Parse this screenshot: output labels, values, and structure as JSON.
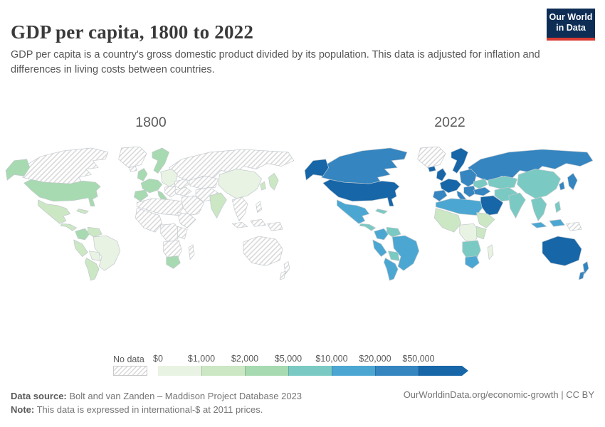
{
  "header": {
    "title": "GDP per capita, 1800 to 2022",
    "subtitle": "GDP per capita is a country's gross domestic product divided by its population. This data is adjusted for inflation and differences in living costs between countries.",
    "logo": {
      "line1": "Our World",
      "line2": "in Data",
      "bg_color": "#0d2d55",
      "accent_color": "#d93a32"
    }
  },
  "legend": {
    "no_data_label": "No data",
    "ticks": [
      "$0",
      "$1,000",
      "$2,000",
      "$5,000",
      "$10,000",
      "$20,000",
      "$50,000"
    ],
    "colors": [
      "#e8f3e3",
      "#cbe7c3",
      "#a7dab0",
      "#7acac3",
      "#4ba7d2",
      "#3485c0",
      "#1666a8"
    ],
    "hatch_line_color": "#d6d6d6",
    "border_color": "#c2c8cd"
  },
  "maps": [
    {
      "year": "1800",
      "regions": {
        "greenland": "nodata",
        "iceland": "nodata",
        "canada": "nodata",
        "alaska": "b3",
        "usa": "b3",
        "mexico": "b2",
        "cuba": "b2",
        "central-america": "b2",
        "colombia": "b3",
        "venezuela": "b2",
        "brazil": "b1",
        "peru": "b2",
        "bolivia": "b1",
        "argentina": "b2",
        "russia": "nodata",
        "scandinavia": "b3",
        "uk": "b3",
        "west-europe": "b3",
        "iberia": "b3",
        "italy": "b3",
        "east-europe": "b1",
        "balkans": "nodata",
        "ukraine": "nodata",
        "turkey": "nodata",
        "central-asia": "nodata",
        "iran": "nodata",
        "middle-east": "nodata",
        "north-africa": "nodata",
        "west-africa": "nodata",
        "central-africa": "nodata",
        "east-africa": "nodata",
        "southern-africa": "nodata",
        "south-africa": "b3",
        "madagascar": "nodata",
        "india": "b2",
        "china": "b1",
        "korea": "b2",
        "japan": "b2",
        "se-asia": "nodata",
        "philippines": "nodata",
        "indonesia": "nodata",
        "papua": "nodata",
        "australia": "nodata",
        "new-zealand": "nodata"
      }
    },
    {
      "year": "2022",
      "regions": {
        "greenland": "nodata",
        "iceland": "b7",
        "canada": "b6",
        "alaska": "b7",
        "usa": "b7",
        "mexico": "b5",
        "cuba": "b4",
        "central-america": "b4",
        "colombia": "b5",
        "venezuela": "b4",
        "brazil": "b5",
        "peru": "b5",
        "bolivia": "b4",
        "argentina": "b5",
        "russia": "b6",
        "scandinavia": "b7",
        "uk": "b7",
        "west-europe": "b7",
        "iberia": "b6",
        "italy": "b6",
        "east-europe": "b6",
        "balkans": "b6",
        "ukraine": "b4",
        "turkey": "b6",
        "central-asia": "b4",
        "iran": "b4",
        "middle-east": "b7",
        "north-africa": "b5",
        "west-africa": "b2",
        "central-africa": "b1",
        "east-africa": "b2",
        "southern-africa": "b4",
        "south-africa": "b5",
        "madagascar": "b1",
        "india": "b4",
        "china": "b4",
        "korea": "b6",
        "japan": "b6",
        "se-asia": "b4",
        "philippines": "b4",
        "indonesia": "b5",
        "papua": "nodata",
        "australia": "b7",
        "new-zealand": "b6"
      }
    }
  ],
  "chart_data": {
    "type": "choropleth-map",
    "title": "GDP per capita, 1800 to 2022",
    "unit": "international-$ at 2011 prices",
    "years": [
      "1800",
      "2022"
    ],
    "legend_bins": [
      {
        "label": "No data",
        "style": "hatched"
      },
      {
        "label": "$0–$1,000",
        "color": "#e8f3e3"
      },
      {
        "label": "$1,000–$2,000",
        "color": "#cbe7c3"
      },
      {
        "label": "$2,000–$5,000",
        "color": "#a7dab0"
      },
      {
        "label": "$5,000–$10,000",
        "color": "#7acac3"
      },
      {
        "label": "$10,000–$20,000",
        "color": "#4ba7d2"
      },
      {
        "label": "$20,000–$50,000",
        "color": "#3485c0"
      },
      {
        "label": "$50,000+",
        "color": "#1666a8"
      }
    ],
    "regions": [
      {
        "name": "United States",
        "1800": "$2,000–$5,000",
        "2022": "$50,000+"
      },
      {
        "name": "Alaska",
        "1800": "$2,000–$5,000",
        "2022": "$50,000+"
      },
      {
        "name": "Canada",
        "1800": "No data",
        "2022": "$20,000–$50,000"
      },
      {
        "name": "Greenland",
        "1800": "No data",
        "2022": "No data"
      },
      {
        "name": "Mexico",
        "1800": "$1,000–$2,000",
        "2022": "$10,000–$20,000"
      },
      {
        "name": "Cuba",
        "1800": "$1,000–$2,000",
        "2022": "$5,000–$10,000"
      },
      {
        "name": "Central America",
        "1800": "$1,000–$2,000",
        "2022": "$5,000–$10,000"
      },
      {
        "name": "Colombia",
        "1800": "$2,000–$5,000",
        "2022": "$10,000–$20,000"
      },
      {
        "name": "Venezuela",
        "1800": "$1,000–$2,000",
        "2022": "$5,000–$10,000"
      },
      {
        "name": "Brazil",
        "1800": "$0–$1,000",
        "2022": "$10,000–$20,000"
      },
      {
        "name": "Peru",
        "1800": "$1,000–$2,000",
        "2022": "$10,000–$20,000"
      },
      {
        "name": "Bolivia & Paraguay",
        "1800": "$0–$1,000",
        "2022": "$5,000–$10,000"
      },
      {
        "name": "Argentina & Chile",
        "1800": "$1,000–$2,000",
        "2022": "$10,000–$20,000"
      },
      {
        "name": "United Kingdom",
        "1800": "$2,000–$5,000",
        "2022": "$50,000+"
      },
      {
        "name": "Scandinavia",
        "1800": "$2,000–$5,000",
        "2022": "$50,000+"
      },
      {
        "name": "Western Europe",
        "1800": "$2,000–$5,000",
        "2022": "$50,000+"
      },
      {
        "name": "Spain & Portugal",
        "1800": "$2,000–$5,000",
        "2022": "$20,000–$50,000"
      },
      {
        "name": "Italy",
        "1800": "$2,000–$5,000",
        "2022": "$20,000–$50,000"
      },
      {
        "name": "Eastern Europe",
        "1800": "$0–$1,000",
        "2022": "$20,000–$50,000"
      },
      {
        "name": "Balkans",
        "1800": "No data",
        "2022": "$20,000–$50,000"
      },
      {
        "name": "Ukraine",
        "1800": "No data",
        "2022": "$5,000–$10,000"
      },
      {
        "name": "Russia",
        "1800": "No data",
        "2022": "$20,000–$50,000"
      },
      {
        "name": "Turkey",
        "1800": "No data",
        "2022": "$20,000–$50,000"
      },
      {
        "name": "Saudi Arabia",
        "1800": "No data",
        "2022": "$50,000+"
      },
      {
        "name": "Iran & Afghanistan",
        "1800": "No data",
        "2022": "$5,000–$10,000"
      },
      {
        "name": "Central Asia",
        "1800": "No data",
        "2022": "$5,000–$10,000"
      },
      {
        "name": "North Africa",
        "1800": "No data",
        "2022": "$10,000–$20,000"
      },
      {
        "name": "West Africa",
        "1800": "No data",
        "2022": "$1,000–$2,000"
      },
      {
        "name": "Central Africa",
        "1800": "No data",
        "2022": "$0–$1,000"
      },
      {
        "name": "East Africa",
        "1800": "No data",
        "2022": "$1,000–$2,000"
      },
      {
        "name": "Southern Africa",
        "1800": "No data",
        "2022": "$5,000–$10,000"
      },
      {
        "name": "South Africa",
        "1800": "$2,000–$5,000",
        "2022": "$10,000–$20,000"
      },
      {
        "name": "Madagascar",
        "1800": "No data",
        "2022": "$0–$1,000"
      },
      {
        "name": "India",
        "1800": "$1,000–$2,000",
        "2022": "$5,000–$10,000"
      },
      {
        "name": "China",
        "1800": "$0–$1,000",
        "2022": "$5,000–$10,000"
      },
      {
        "name": "Korea",
        "1800": "$1,000–$2,000",
        "2022": "$20,000–$50,000"
      },
      {
        "name": "Japan",
        "1800": "$1,000–$2,000",
        "2022": "$20,000–$50,000"
      },
      {
        "name": "Southeast Asia",
        "1800": "No data",
        "2022": "$5,000–$10,000"
      },
      {
        "name": "Philippines",
        "1800": "No data",
        "2022": "$5,000–$10,000"
      },
      {
        "name": "Indonesia",
        "1800": "No data",
        "2022": "$10,000–$20,000"
      },
      {
        "name": "Papua New Guinea",
        "1800": "No data",
        "2022": "No data"
      },
      {
        "name": "Australia",
        "1800": "No data",
        "2022": "$50,000+"
      },
      {
        "name": "New Zealand",
        "1800": "No data",
        "2022": "$20,000–$50,000"
      }
    ]
  },
  "footer": {
    "source_label": "Data source:",
    "source_text": " Bolt and van Zanden – Maddison Project Database 2023",
    "note_label": "Note:",
    "note_text": " This data is expressed in international-$ at 2011 prices.",
    "link": "OurWorldinData.org/economic-growth",
    "separator": " | ",
    "license": "CC BY"
  }
}
